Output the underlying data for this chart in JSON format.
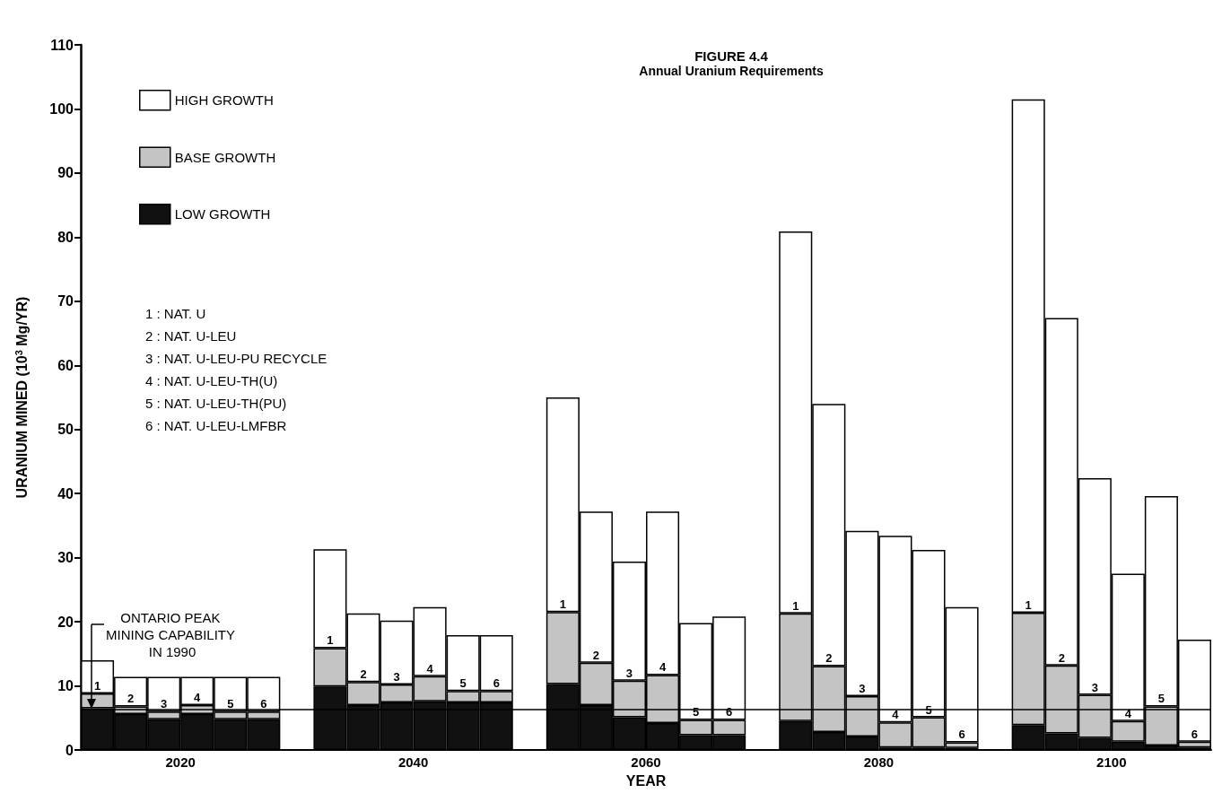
{
  "chart_data": {
    "type": "bar",
    "stacked": true,
    "title": "FIGURE 4.4",
    "subtitle": "Annual Uranium Requirements",
    "xlabel": "YEAR",
    "ylabel": "URANIUM MINED (10$^{3}$ Mg/YR)",
    "categories": [
      null,
      null,
      "2020",
      null,
      null,
      null,
      null,
      null,
      null,
      "2040",
      null,
      null,
      null,
      null,
      null,
      null,
      "2060",
      null,
      null,
      null,
      null,
      null,
      null,
      "2080",
      null,
      null,
      null,
      null,
      null,
      null,
      "2100",
      null,
      null,
      null
    ],
    "ylim": [
      0,
      110
    ],
    "yticks": [
      0,
      10,
      20,
      30,
      40,
      50,
      60,
      70,
      80,
      90,
      100,
      110
    ],
    "grid": false,
    "legend": "top left",
    "series": [
      {
        "name": "LOW GROWTH",
        "color": "#111111",
        "values": [
          6.5,
          5.6,
          4.8,
          5.6,
          4.8,
          4.8,
          null,
          9.9,
          7.0,
          7.4,
          7.6,
          7.4,
          7.4,
          null,
          10.3,
          7.0,
          5.1,
          4.2,
          2.3,
          2.3,
          null,
          4.5,
          2.8,
          2.1,
          0.4,
          0.4,
          0.3,
          null,
          3.9,
          2.6,
          1.9,
          1.3,
          0.7,
          0.4
        ]
      },
      {
        "name": "BASE GROWTH",
        "color": "#c4c4c4",
        "values": [
          2.3,
          1.2,
          1.2,
          1.4,
          1.2,
          1.2,
          null,
          6.0,
          3.6,
          2.8,
          3.9,
          1.8,
          1.8,
          null,
          11.2,
          6.6,
          5.7,
          7.5,
          2.4,
          2.4,
          null,
          16.8,
          10.3,
          6.3,
          3.9,
          4.7,
          0.9,
          null,
          17.5,
          10.6,
          6.7,
          3.2,
          6.1,
          0.9
        ]
      },
      {
        "name": "HIGH GROWTH",
        "color": "#ffffff",
        "values": [
          5.2,
          4.6,
          5.4,
          4.4,
          5.4,
          5.4,
          null,
          15.4,
          10.7,
          10.0,
          10.8,
          8.7,
          8.7,
          null,
          33.5,
          23.6,
          18.6,
          25.5,
          15.1,
          16.1,
          null,
          59.6,
          40.9,
          25.8,
          29.1,
          26.1,
          21.1,
          null,
          80.1,
          54.2,
          33.8,
          23.0,
          32.8,
          15.9
        ]
      }
    ],
    "ref_lines": [
      {
        "axis": "y",
        "value": 6.3,
        "label": "ONTARIO PEAK MINING CAPABILITY IN 1990",
        "color": "#000000"
      }
    ],
    "annotations": [
      "1 : NAT. U",
      "2 : NAT. U-LEU",
      "3 : NAT. U-LEU-PU RECYCLE",
      "4 : NAT. U-LEU-TH(U)",
      "5 : NAT. U-LEU-TH(PU)",
      "6 : NAT. U-LEU-LMFBR",
      "1",
      "2",
      "3",
      "4",
      "5",
      "6",
      "1",
      "2",
      "3",
      "4",
      "5",
      "6",
      "1",
      "2",
      "3",
      "4",
      "5",
      "6",
      "1",
      "2",
      "3",
      "4",
      "5",
      "6",
      "1",
      "2",
      "3",
      "4",
      "5",
      "6"
    ]
  }
}
